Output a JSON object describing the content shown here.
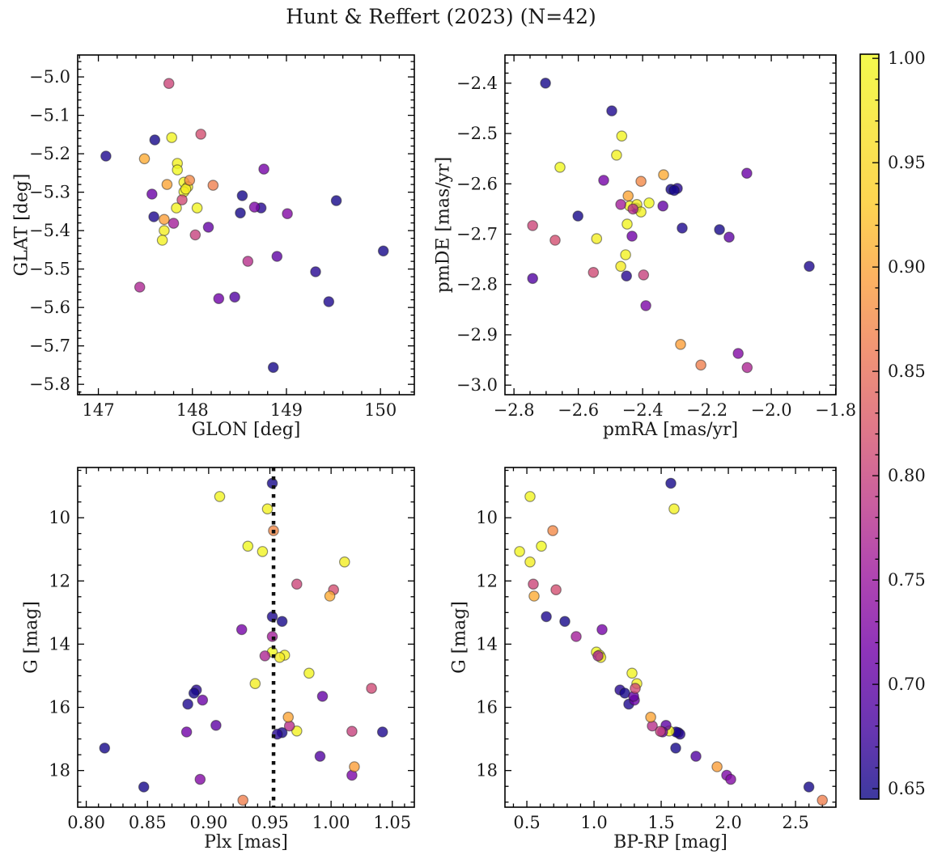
{
  "title": "Hunt & Reffert (2023) (N=42)",
  "colorbar": {
    "vmin": 0.645,
    "vmax": 1.002,
    "ticks": [
      1.0,
      0.95,
      0.9,
      0.85,
      0.8,
      0.75,
      0.7,
      0.65
    ],
    "tick_labels": [
      "1.00",
      "0.95",
      "0.90",
      "0.85",
      "0.80",
      "0.75",
      "0.70",
      "0.65"
    ],
    "minor_step": 0.01,
    "colormap": "plasma",
    "alpha": 0.8,
    "colormap_anchors": [
      "#0d0887",
      "#46039f",
      "#7201a8",
      "#9c179e",
      "#bd3786",
      "#d8576b",
      "#ed7953",
      "#fb9f3a",
      "#fdca26",
      "#f7e225",
      "#f0f921"
    ]
  },
  "chart_data": {
    "type": "scatter",
    "suptitle": "Hunt & Reffert (2023) (N=42)",
    "n_stars": 42,
    "color_by": "membership probability",
    "columns": [
      "glon",
      "glat",
      "pmra",
      "pmde",
      "plx",
      "gmag",
      "bp_rp",
      "prob"
    ],
    "panels": [
      {
        "id": "position",
        "xlabel": "GLON [deg]",
        "ylabel": "GLAT [deg]",
        "xkey": 0,
        "ykey": 1,
        "xlim": [
          146.78,
          150.36
        ],
        "ylim": [
          -4.943,
          -5.827
        ],
        "xticks": [
          147,
          148,
          149,
          150
        ],
        "xtick_labels": [
          "147",
          "148",
          "149",
          "150"
        ],
        "yticks": [
          -5.0,
          -5.1,
          -5.2,
          -5.3,
          -5.4,
          -5.5,
          -5.6,
          -5.7,
          -5.8
        ],
        "ytick_labels": [
          "−5.0",
          "−5.1",
          "−5.2",
          "−5.3",
          "−5.4",
          "−5.5",
          "−5.6",
          "−5.7",
          "−5.8"
        ],
        "x_minor": 0.2,
        "y_minor": 0.02
      },
      {
        "id": "proper-motion",
        "xlabel": "pmRA [mas/yr]",
        "ylabel": "pmDE [mas/yr]",
        "xkey": 2,
        "ykey": 3,
        "xlim": [
          -2.828,
          -1.799
        ],
        "ylim": [
          -2.344,
          -3.019
        ],
        "xticks": [
          -2.8,
          -2.6,
          -2.4,
          -2.2,
          -2.0,
          -1.8
        ],
        "xtick_labels": [
          "−2.8",
          "−2.6",
          "−2.4",
          "−2.2",
          "−2.0",
          "−1.8"
        ],
        "yticks": [
          -2.4,
          -2.5,
          -2.6,
          -2.7,
          -2.8,
          -2.9,
          -3.0
        ],
        "ytick_labels": [
          "−2.4",
          "−2.5",
          "−2.6",
          "−2.7",
          "−2.8",
          "−2.9",
          "−3.0"
        ],
        "x_minor": 0.05,
        "y_minor": 0.02
      },
      {
        "id": "parallax-mag",
        "xlabel": "Plx [mas]",
        "ylabel": "G [mag]",
        "xkey": 4,
        "ykey": 5,
        "xlim": [
          0.793,
          1.068
        ],
        "ylim": [
          8.41,
          19.16
        ],
        "xticks": [
          0.8,
          0.85,
          0.9,
          0.95,
          1.0,
          1.05
        ],
        "xtick_labels": [
          "0.80",
          "0.85",
          "0.90",
          "0.95",
          "1.00",
          "1.05"
        ],
        "yticks": [
          10,
          12,
          14,
          16,
          18
        ],
        "ytick_labels": [
          "10",
          "12",
          "14",
          "16",
          "18"
        ],
        "x_minor": 0.01,
        "y_minor": 0.5,
        "vline": 0.953
      },
      {
        "id": "cmd",
        "xlabel": "BP-RP [mag]",
        "ylabel": "G [mag]",
        "xkey": 6,
        "ykey": 5,
        "xlim": [
          0.337,
          2.801
        ],
        "ylim": [
          8.41,
          19.16
        ],
        "xticks": [
          0.5,
          1.0,
          1.5,
          2.0,
          2.5
        ],
        "xtick_labels": [
          "0.5",
          "1.0",
          "1.5",
          "2.0",
          "2.5"
        ],
        "yticks": [
          10,
          12,
          14,
          16,
          18
        ],
        "ytick_labels": [
          "10",
          "12",
          "14",
          "16",
          "18"
        ],
        "x_minor": 0.1,
        "y_minor": 0.5
      }
    ],
    "stars": [
      [
        147.6,
        -5.164,
        -2.702,
        -2.4,
        0.952,
        8.91,
        1.572,
        0.65
      ],
      [
        147.08,
        -5.206,
        -2.496,
        -2.455,
        0.952,
        13.13,
        0.645,
        0.655
      ],
      [
        148.53,
        -5.309,
        -2.312,
        -2.611,
        0.96,
        13.28,
        0.783,
        0.65
      ],
      [
        148.73,
        -5.341,
        -2.292,
        -2.609,
        0.89,
        15.45,
        1.193,
        0.66
      ],
      [
        148.51,
        -5.354,
        -2.601,
        -2.664,
        0.888,
        15.55,
        1.229,
        0.65
      ],
      [
        147.59,
        -5.364,
        -2.277,
        -2.688,
        0.883,
        15.9,
        1.259,
        0.655
      ],
      [
        149.53,
        -5.322,
        -2.161,
        -2.691,
        0.96,
        16.8,
        1.627,
        0.65
      ],
      [
        149.31,
        -5.507,
        -2.45,
        -2.783,
        0.956,
        16.85,
        1.64,
        0.66
      ],
      [
        149.45,
        -5.585,
        -1.882,
        -2.764,
        1.042,
        16.78,
        1.61,
        0.655
      ],
      [
        148.86,
        -5.756,
        -2.302,
        -2.613,
        0.815,
        17.29,
        1.608,
        0.65
      ],
      [
        150.03,
        -5.453,
        -2.42,
        -2.648,
        0.847,
        18.52,
        2.6,
        0.65
      ],
      [
        147.78,
        -5.158,
        -2.465,
        -2.505,
        0.909,
        9.33,
        0.524,
        0.995
      ],
      [
        147.84,
        -5.225,
        -2.481,
        -2.543,
        0.948,
        9.72,
        1.596,
        0.99
      ],
      [
        147.84,
        -5.242,
        -2.657,
        -2.567,
        0.932,
        10.9,
        0.608,
        1.0
      ],
      [
        147.91,
        -5.274,
        -2.44,
        -2.644,
        0.944,
        11.07,
        0.446,
        0.995
      ],
      [
        147.95,
        -5.286,
        -2.418,
        -2.641,
        1.011,
        11.4,
        0.524,
        0.985
      ],
      [
        147.91,
        -5.299,
        -2.38,
        -2.638,
        0.952,
        14.25,
        1.018,
        1.0
      ],
      [
        147.83,
        -5.341,
        -2.405,
        -2.656,
        0.962,
        14.35,
        1.042,
        0.99
      ],
      [
        148.05,
        -5.341,
        -2.448,
        -2.68,
        0.982,
        14.92,
        1.283,
        0.995
      ],
      [
        147.7,
        -5.4,
        -2.543,
        -2.709,
        0.938,
        15.25,
        1.319,
        0.985
      ],
      [
        147.68,
        -5.425,
        -2.453,
        -2.741,
        0.972,
        16.75,
        1.56,
        0.99
      ],
      [
        147.93,
        -5.292,
        -2.468,
        -2.764,
        0.958,
        14.42,
        1.05,
        0.98
      ],
      [
        148.76,
        -5.24,
        -2.521,
        -2.593,
        0.927,
        13.54,
        1.06,
        0.72
      ],
      [
        147.57,
        -5.305,
        -2.076,
        -2.579,
        0.895,
        15.77,
        1.301,
        0.71
      ],
      [
        148.17,
        -5.391,
        -2.337,
        -2.644,
        0.993,
        15.65,
        1.295,
        0.705
      ],
      [
        148.9,
        -5.467,
        -2.131,
        -2.706,
        0.906,
        16.57,
        1.536,
        0.7
      ],
      [
        148.28,
        -5.577,
        -2.433,
        -2.704,
        0.882,
        16.78,
        1.51,
        0.715
      ],
      [
        148.45,
        -5.573,
        -2.742,
        -2.788,
        0.991,
        17.55,
        1.759,
        0.69
      ],
      [
        148.66,
        -5.339,
        -2.39,
        -2.842,
        1.017,
        18.15,
        1.988,
        0.725
      ],
      [
        149.01,
        -5.356,
        -2.103,
        -2.937,
        0.893,
        18.28,
        2.018,
        0.73
      ],
      [
        147.8,
        -5.381,
        -2.468,
        -2.641,
        0.952,
        13.76,
        0.867,
        0.76
      ],
      [
        147.44,
        -5.547,
        -2.075,
        -2.965,
        0.946,
        14.37,
        1.03,
        0.77
      ],
      [
        148.59,
        -5.48,
        -2.43,
        -2.65,
        0.966,
        16.59,
        1.434,
        0.78
      ],
      [
        147.75,
        -5.017,
        -2.742,
        -2.683,
        0.972,
        12.1,
        0.548,
        0.805
      ],
      [
        148.09,
        -5.149,
        -2.672,
        -2.712,
        1.002,
        12.28,
        0.717,
        0.815
      ],
      [
        147.89,
        -5.32,
        -2.553,
        -2.776,
        1.033,
        15.4,
        1.307,
        0.81
      ],
      [
        148.03,
        -5.411,
        -2.397,
        -2.781,
        1.017,
        16.76,
        1.494,
        0.8
      ],
      [
        147.97,
        -5.269,
        -2.405,
        -2.595,
        0.953,
        10.41,
        0.693,
        0.875
      ],
      [
        148.22,
        -5.282,
        -2.219,
        -2.96,
        0.928,
        18.94,
        2.7,
        0.865
      ],
      [
        147.49,
        -5.213,
        -2.335,
        -2.582,
        0.999,
        12.48,
        0.554,
        0.905
      ],
      [
        147.73,
        -5.28,
        -2.445,
        -2.624,
        0.965,
        16.31,
        1.422,
        0.9
      ],
      [
        147.7,
        -5.371,
        -2.282,
        -2.919,
        1.019,
        17.88,
        1.916,
        0.895
      ]
    ]
  }
}
